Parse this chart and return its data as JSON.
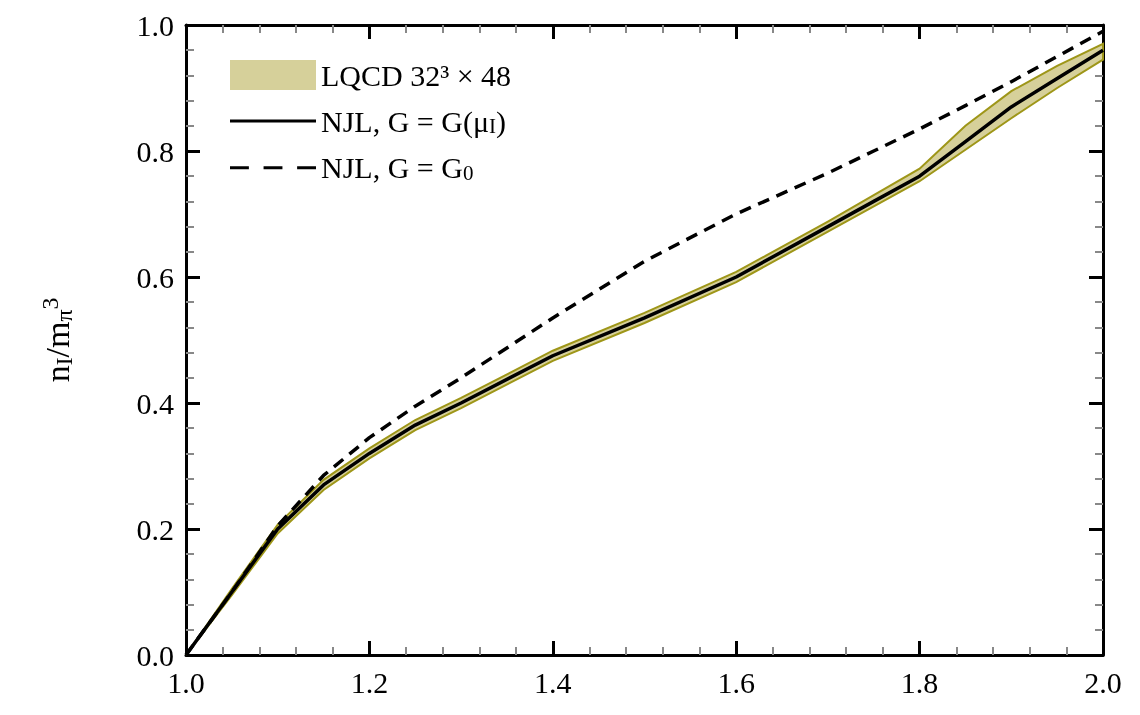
{
  "chart_data": {
    "type": "line",
    "ylabel": "n$_{I}$/m$_{π}$$^{3}$",
    "x": [
      1.0,
      1.05,
      1.1,
      1.15,
      1.2,
      1.25,
      1.3,
      1.4,
      1.5,
      1.6,
      1.7,
      1.75,
      1.8,
      1.85,
      1.9,
      1.95,
      2.0
    ],
    "series": [
      {
        "name": "LQCD 32³ × 48",
        "type": "line",
        "color": "#d6d09a",
        "values": [
          null,
          null,
          null,
          null,
          null,
          null,
          null,
          null,
          null,
          null,
          null,
          null,
          null,
          null,
          null,
          null,
          null
        ],
        "lower": [
          0,
          0.095,
          0.193,
          0.262,
          0.312,
          0.357,
          0.392,
          0.467,
          0.527,
          0.592,
          0.672,
          0.712,
          0.752,
          0.802,
          0.852,
          0.9,
          0.945
        ],
        "upper": [
          0,
          0.105,
          0.207,
          0.278,
          0.328,
          0.373,
          0.408,
          0.483,
          0.543,
          0.608,
          0.688,
          0.73,
          0.772,
          0.84,
          0.895,
          0.935,
          0.97
        ]
      },
      {
        "name": "NJL, G = G(μ$_{I}$)",
        "type": "line",
        "color": "#000000",
        "line_style": "solid",
        "values": [
          0,
          0.1,
          0.2,
          0.27,
          0.32,
          0.365,
          0.4,
          0.475,
          0.535,
          0.6,
          0.68,
          0.72,
          0.76,
          0.815,
          0.87,
          0.915,
          0.96
        ]
      },
      {
        "name": "NJL, G = G$_{0}$",
        "type": "line",
        "color": "#000000",
        "line_style": "dashed",
        "values": [
          0,
          0.1,
          0.205,
          0.285,
          0.345,
          0.395,
          0.44,
          0.535,
          0.625,
          0.7,
          0.765,
          0.8,
          0.835,
          0.872,
          0.91,
          0.95,
          0.99
        ]
      }
    ],
    "xlim": [
      1.0,
      2.0
    ],
    "xticks": [
      {
        "value": 1.0,
        "label": "1.0"
      },
      1.2,
      1.4,
      1.6,
      1.8,
      {
        "value": 2.0,
        "label": "2.0"
      }
    ],
    "ylim": [
      0.0,
      1.0
    ],
    "yticks": [
      {
        "value": 0.0,
        "label": "0.0"
      },
      0.2,
      0.4,
      0.6,
      0.8,
      {
        "value": 1.0,
        "label": "1.0"
      }
    ],
    "grid": false,
    "legend": "top left",
    "marker": "none"
  }
}
